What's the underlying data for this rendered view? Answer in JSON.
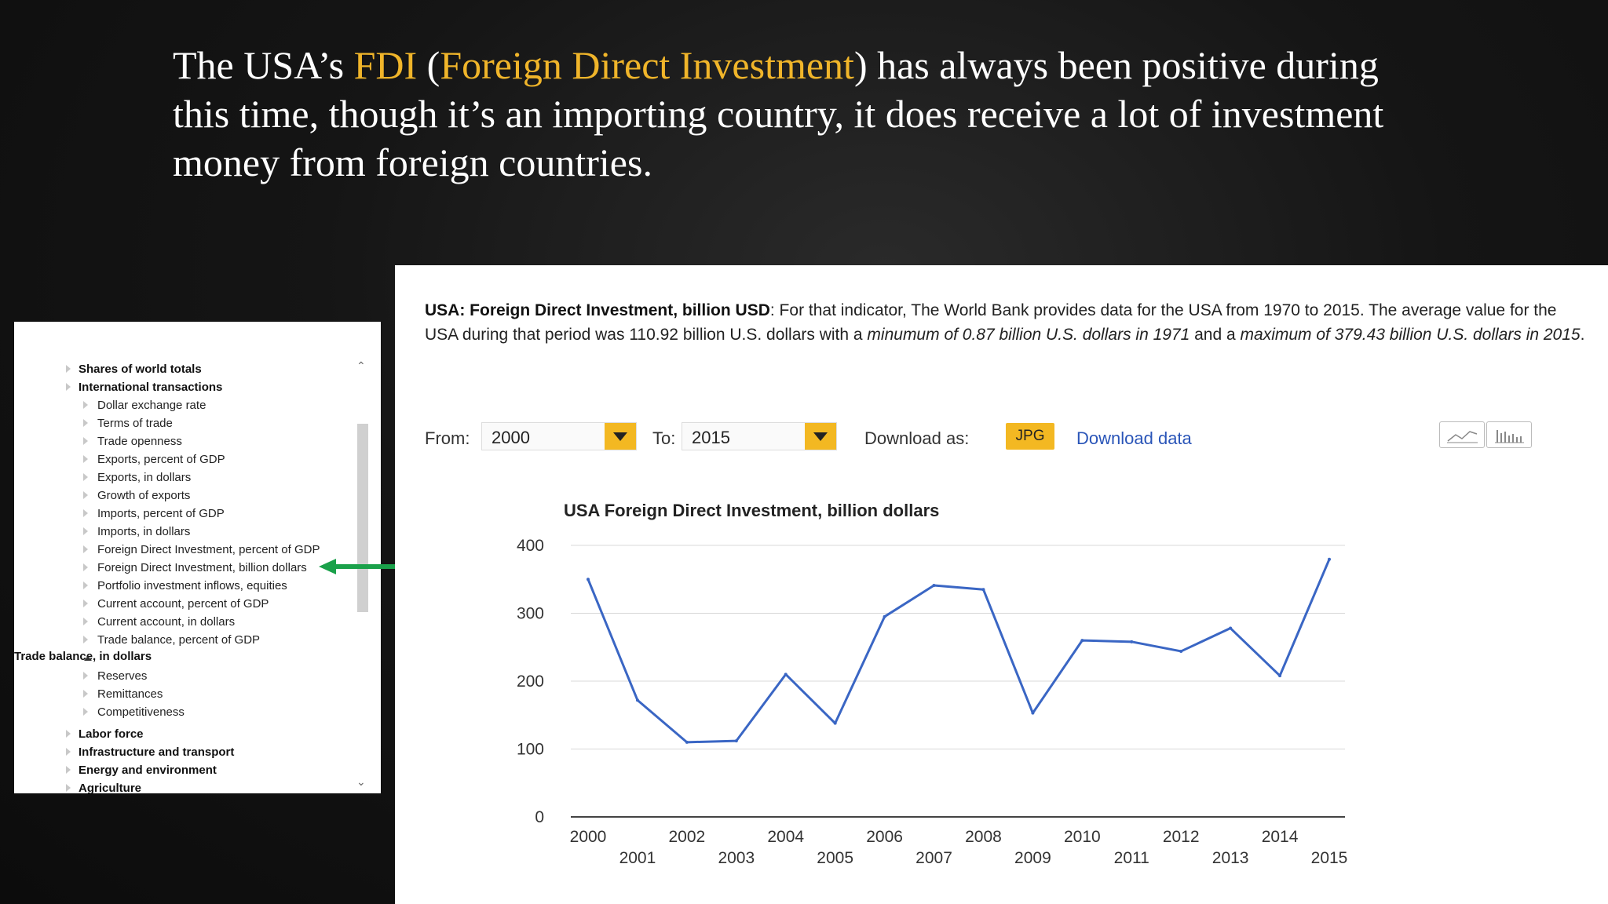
{
  "headline": {
    "part1": "The USA’s ",
    "hl1": "FDI",
    "part2": " (",
    "hl2": "Foreign Direct Investment",
    "part3": ") has always been positive during this time, though it’s an importing country, it does receive a lot of investment money from foreign countries."
  },
  "sidebar": {
    "items": [
      {
        "label": "Shares of world totals",
        "level": "top"
      },
      {
        "label": "International transactions",
        "level": "top"
      },
      {
        "label": "Dollar exchange rate",
        "level": "sub"
      },
      {
        "label": "Terms of trade",
        "level": "sub"
      },
      {
        "label": "Trade openness",
        "level": "sub"
      },
      {
        "label": "Exports, percent of GDP",
        "level": "sub"
      },
      {
        "label": "Exports, in dollars",
        "level": "sub"
      },
      {
        "label": "Growth of exports",
        "level": "sub"
      },
      {
        "label": "Imports, percent of GDP",
        "level": "sub"
      },
      {
        "label": "Imports, in dollars",
        "level": "sub"
      },
      {
        "label": "Foreign Direct Investment, percent of GDP",
        "level": "sub"
      },
      {
        "label": "Foreign Direct Investment, billion dollars",
        "level": "sub"
      },
      {
        "label": "Portfolio investment inflows, equities",
        "level": "sub"
      },
      {
        "label": "Current account, percent of GDP",
        "level": "sub"
      },
      {
        "label": "Current account, in dollars",
        "level": "sub"
      },
      {
        "label": "Trade balance, percent of GDP",
        "level": "sub"
      },
      {
        "label": "Trade balance, in dollars",
        "level": "sel"
      },
      {
        "label": "Reserves",
        "level": "sub"
      },
      {
        "label": "Remittances",
        "level": "sub"
      },
      {
        "label": "Competitiveness",
        "level": "sub"
      },
      {
        "label": "Labor force",
        "level": "top",
        "gap": true
      },
      {
        "label": "Infrastructure and transport",
        "level": "top"
      },
      {
        "label": "Energy and environment",
        "level": "top"
      },
      {
        "label": "Agriculture",
        "level": "top"
      }
    ]
  },
  "main": {
    "desc_bold": "USA: Foreign Direct Investment, billion USD",
    "desc_plain1": ": For that indicator, The World Bank provides data for the USA from 1970 to 2015. The average value for the USA during that period was 110.92 billion U.S. dollars with a ",
    "desc_italic1": "minumum of 0.87 billion U.S. dollars in 1971",
    "desc_plain2": " and a ",
    "desc_italic2": "maximum of 379.43 billion U.S. dollars in 2015",
    "desc_end": ".",
    "from_label": "From:",
    "from_value": "2000",
    "to_label": "To:",
    "to_value": "2015",
    "download_label": "Download as:",
    "jpg_label": "JPG",
    "download_data": "Download data",
    "accent": "#f3b822",
    "line_color": "#3a66c4",
    "arrow_color": "#1aa14a",
    "icons": [
      "line-chart-icon",
      "bar-chart-icon"
    ]
  },
  "chart_data": {
    "type": "line",
    "title": "USA Foreign Direct Investment, billion dollars",
    "xlabel": "",
    "ylabel": "",
    "ylim": [
      0,
      400
    ],
    "yticks": [
      0,
      100,
      200,
      300,
      400
    ],
    "grid": true,
    "x": [
      2000,
      2001,
      2002,
      2003,
      2004,
      2005,
      2006,
      2007,
      2008,
      2009,
      2010,
      2011,
      2012,
      2013,
      2014,
      2015
    ],
    "series": [
      {
        "values": [
          350,
          172,
          110,
          112,
          210,
          138,
          295,
          341,
          335,
          153,
          260,
          258,
          244,
          278,
          208,
          379.43
        ]
      }
    ]
  }
}
